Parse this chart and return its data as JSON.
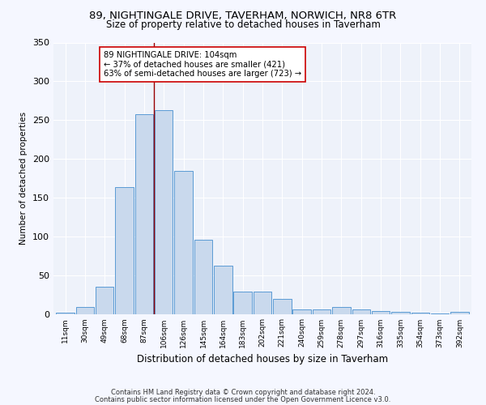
{
  "title": "89, NIGHTINGALE DRIVE, TAVERHAM, NORWICH, NR8 6TR",
  "subtitle": "Size of property relative to detached houses in Taverham",
  "xlabel": "Distribution of detached houses by size in Taverham",
  "ylabel": "Number of detached properties",
  "bar_color": "#c9d9ed",
  "bar_edge_color": "#5b9bd5",
  "background_color": "#eef2fa",
  "grid_color": "#ffffff",
  "fig_facecolor": "#f5f7ff",
  "categories": [
    "11sqm",
    "30sqm",
    "49sqm",
    "68sqm",
    "87sqm",
    "106sqm",
    "126sqm",
    "145sqm",
    "164sqm",
    "183sqm",
    "202sqm",
    "221sqm",
    "240sqm",
    "259sqm",
    "278sqm",
    "297sqm",
    "316sqm",
    "335sqm",
    "354sqm",
    "373sqm",
    "392sqm"
  ],
  "values": [
    2,
    9,
    35,
    163,
    258,
    263,
    184,
    96,
    62,
    29,
    29,
    19,
    6,
    6,
    9,
    6,
    4,
    3,
    2,
    1,
    3
  ],
  "vline_idx": 5,
  "vline_color": "#990000",
  "annotation_text": "89 NIGHTINGALE DRIVE: 104sqm\n← 37% of detached houses are smaller (421)\n63% of semi-detached houses are larger (723) →",
  "footer1": "Contains HM Land Registry data © Crown copyright and database right 2024.",
  "footer2": "Contains public sector information licensed under the Open Government Licence v3.0.",
  "ylim": [
    0,
    350
  ],
  "yticks": [
    0,
    50,
    100,
    150,
    200,
    250,
    300,
    350
  ]
}
